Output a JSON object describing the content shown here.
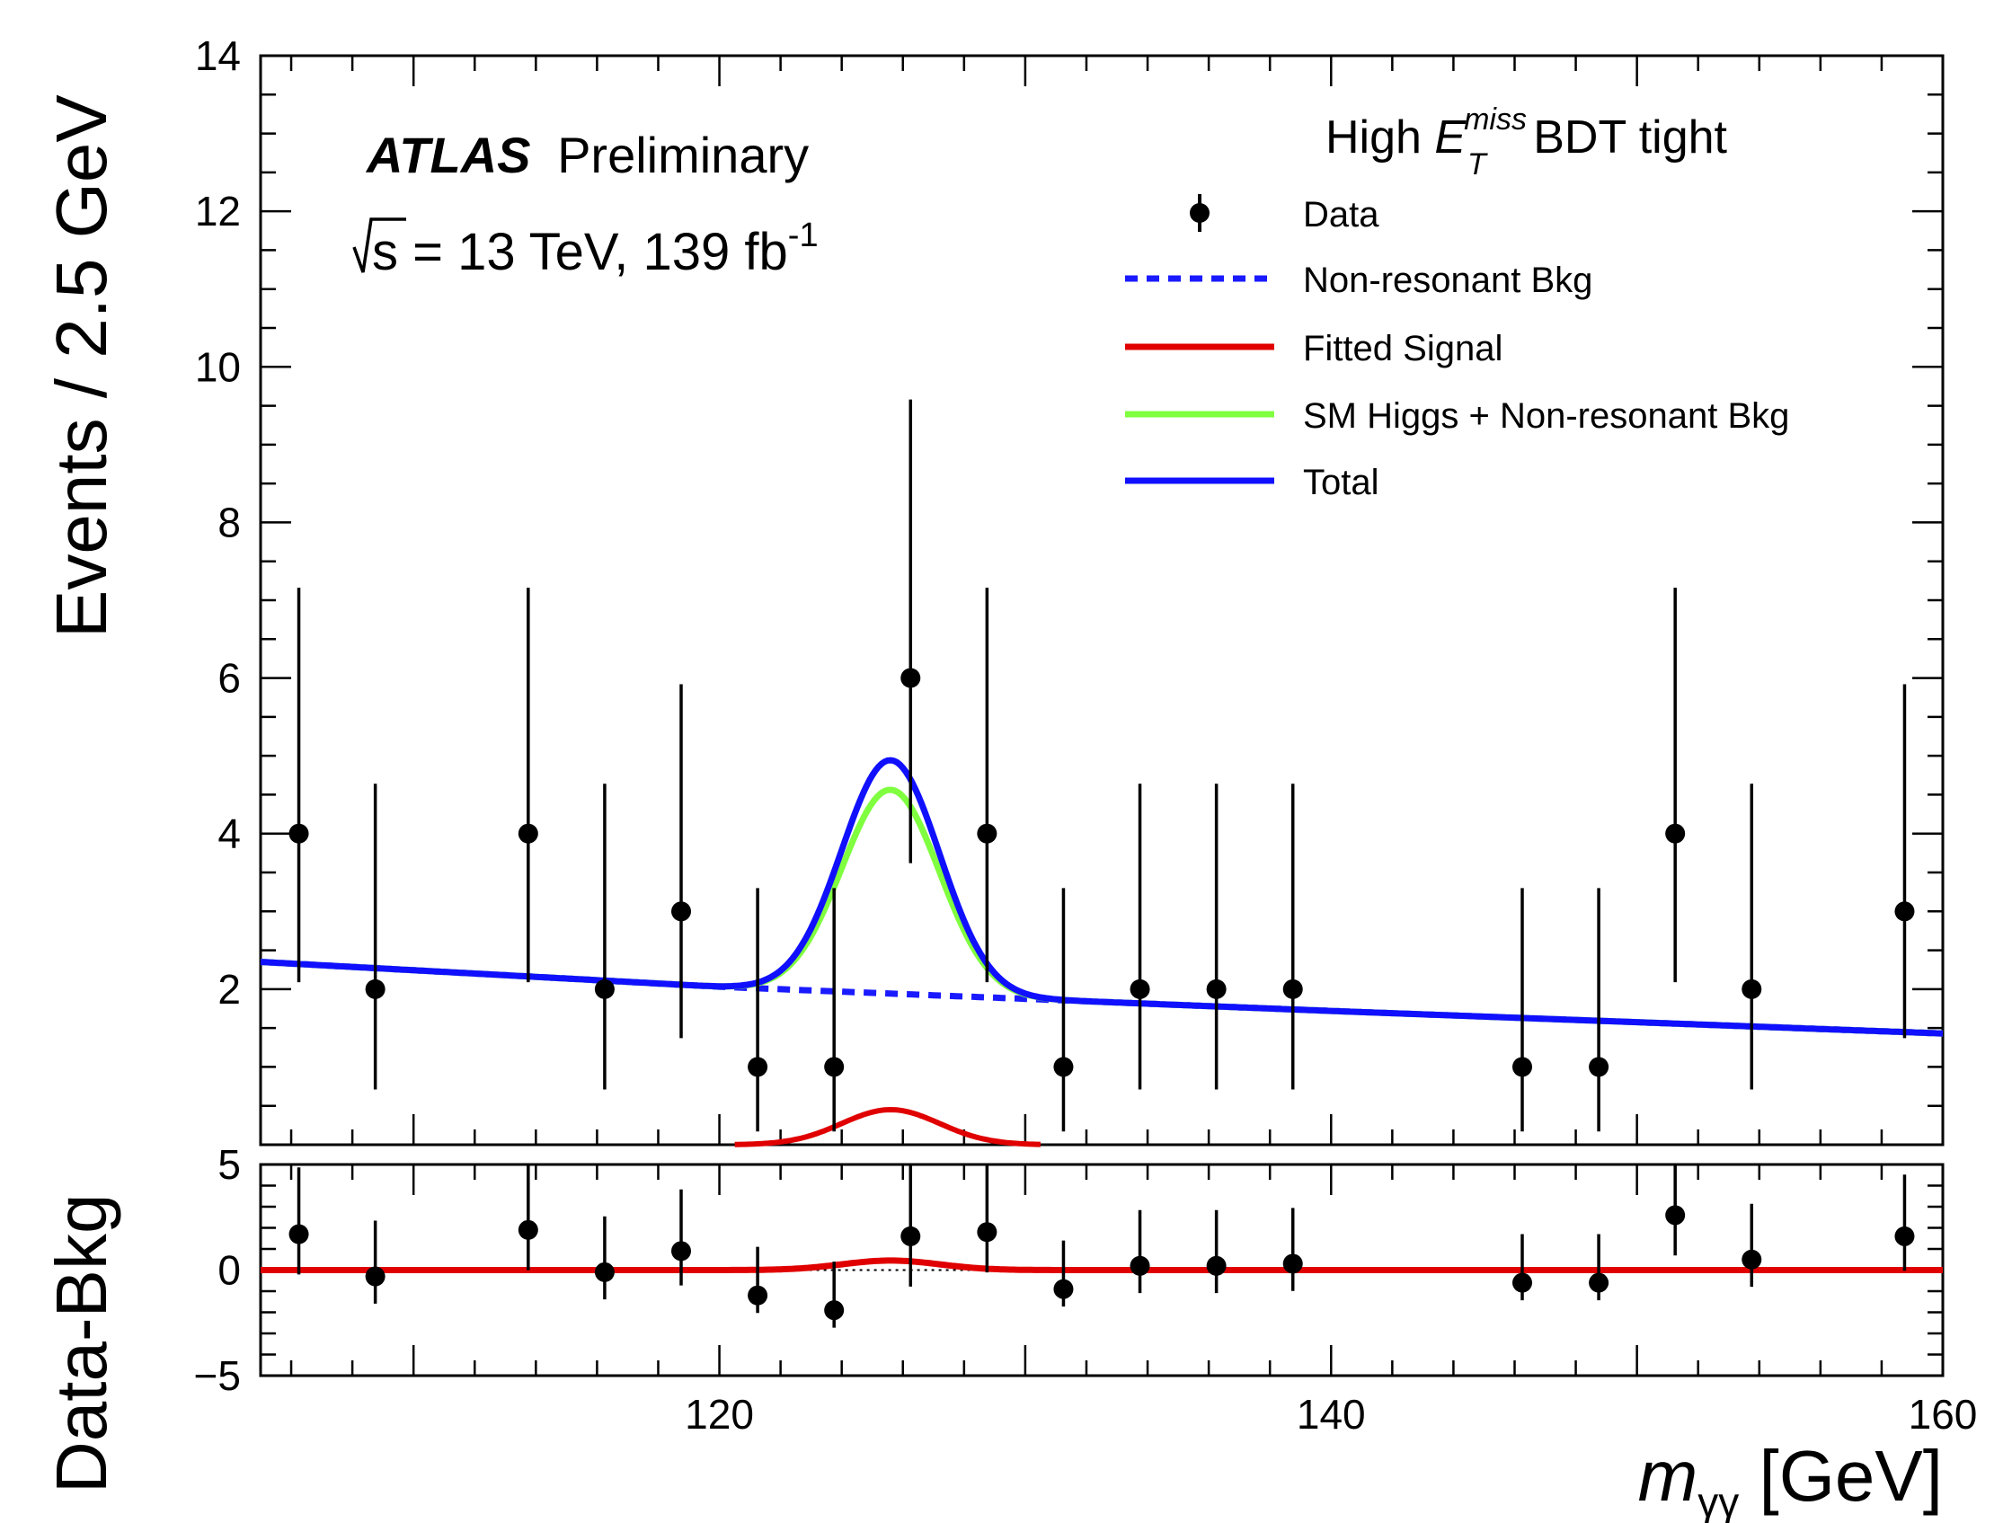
{
  "chart_data": [
    {
      "type": "scatter",
      "panel": "main",
      "ylabel": "Events / 2.5 GeV",
      "xlim": [
        105,
        160
      ],
      "ylim": [
        0,
        14
      ],
      "yticks": [
        "2",
        "4",
        "6",
        "8",
        "10",
        "12",
        "14"
      ],
      "annotations": {
        "experiment": "ATLAS",
        "status": "Preliminary",
        "energy_prefix": "s",
        "energy": " = 13 TeV, 139 fb",
        "lumi_exp": "-1",
        "category_a": "High ",
        "category_e": "E",
        "category_sup": "miss",
        "category_sub": "T",
        "category_b": " BDT tight"
      },
      "legend": [
        {
          "label": "Data",
          "style": "marker"
        },
        {
          "label": "Non-resonant Bkg",
          "style": "dashed",
          "color": "#1a1aff"
        },
        {
          "label": "Fitted Signal",
          "style": "line",
          "color": "#e00000"
        },
        {
          "label": "SM Higgs + Non-resonant Bkg",
          "style": "line",
          "color": "#7fff3f"
        },
        {
          "label": "Total",
          "style": "line",
          "color": "#1010ff"
        }
      ],
      "data": {
        "x": [
          106.25,
          108.75,
          113.75,
          116.25,
          118.75,
          121.25,
          123.75,
          126.25,
          128.75,
          131.25,
          133.75,
          136.25,
          138.75,
          146.25,
          148.75,
          151.25,
          153.75,
          158.75
        ],
        "y": [
          4,
          2,
          4,
          2,
          3,
          1,
          1,
          6,
          4,
          1,
          2,
          2,
          2,
          1,
          1,
          4,
          2,
          3
        ],
        "err_low": [
          1.91,
          1.29,
          1.91,
          1.29,
          1.63,
          0.83,
          0.83,
          2.38,
          1.91,
          0.83,
          1.29,
          1.29,
          1.29,
          0.83,
          0.83,
          1.91,
          1.29,
          1.63
        ],
        "err_high": [
          3.16,
          2.64,
          3.16,
          2.64,
          2.92,
          2.3,
          2.3,
          3.58,
          3.16,
          2.3,
          2.64,
          2.64,
          2.64,
          2.3,
          2.3,
          3.16,
          2.64,
          2.92
        ]
      },
      "curves": {
        "background": {
          "x": [
            105,
            120,
            140,
            160
          ],
          "y": [
            2.35,
            2.03,
            1.72,
            1.43
          ]
        },
        "signal_peak": {
          "mean": 125.6,
          "sigma": 1.6,
          "amplitude": 0.45,
          "range": [
            120.5,
            130.5
          ]
        },
        "sm_higgs_peak": {
          "mean": 125.6,
          "sigma": 1.6,
          "amplitude": 2.62
        },
        "total_peak": {
          "mean": 125.6,
          "sigma": 1.6,
          "amplitude": 3.0
        }
      }
    },
    {
      "type": "scatter",
      "panel": "ratio",
      "ylabel": "Data-Bkg",
      "xlabel_main": "m",
      "xlabel_sub": "γγ",
      "xlabel_unit": " [GeV]",
      "xlim": [
        105,
        160
      ],
      "ylim": [
        -5,
        5
      ],
      "xticks": [
        "120",
        "140",
        "160"
      ],
      "yticks": [
        "−5",
        "0",
        "5"
      ],
      "data": {
        "x": [
          106.25,
          108.75,
          113.75,
          116.25,
          118.75,
          121.25,
          123.75,
          126.25,
          128.75,
          131.25,
          133.75,
          136.25,
          138.75,
          146.25,
          148.75,
          151.25,
          153.75,
          158.75
        ],
        "y": [
          1.7,
          -0.3,
          1.9,
          -0.1,
          0.9,
          -1.2,
          -1.9,
          1.6,
          1.8,
          -0.9,
          0.2,
          0.2,
          0.3,
          -0.6,
          -0.6,
          2.6,
          0.5,
          1.6
        ],
        "err_low": [
          1.91,
          1.29,
          1.91,
          1.29,
          1.63,
          0.83,
          0.83,
          2.38,
          1.91,
          0.83,
          1.29,
          1.29,
          1.29,
          0.83,
          0.83,
          1.91,
          1.29,
          1.63
        ],
        "err_high": [
          3.16,
          2.64,
          3.16,
          2.64,
          2.92,
          2.3,
          2.3,
          3.58,
          3.16,
          2.3,
          2.64,
          2.64,
          2.64,
          2.3,
          2.3,
          3.16,
          2.64,
          2.92
        ]
      },
      "curves": {
        "signal": {
          "mean": 125.6,
          "sigma": 1.6,
          "amplitude": 0.45,
          "baseline": 0,
          "color": "#e00000"
        },
        "zero_line": {
          "y": 0,
          "style": "dotted"
        }
      }
    }
  ]
}
